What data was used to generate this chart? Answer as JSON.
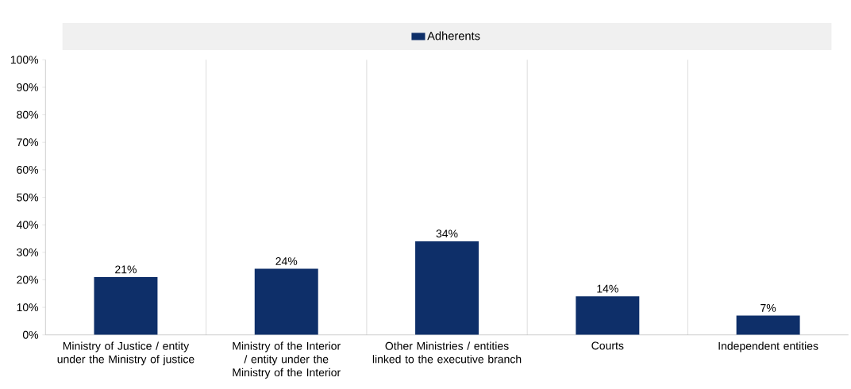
{
  "chart_data": {
    "type": "bar",
    "categories": [
      "Ministry of Justice / entity under the Ministry of justice",
      "Ministry of the Interior / entity under the Ministry of the Interior",
      "Other Ministries / entities linked to the executive branch",
      "Courts",
      "Independent entities"
    ],
    "series": [
      {
        "name": "Adherents",
        "color": "#0e2f69",
        "values": [
          21,
          24,
          34,
          14,
          7
        ]
      }
    ],
    "value_labels": [
      "21%",
      "24%",
      "34%",
      "14%",
      "7%"
    ],
    "ylim": [
      0,
      100
    ],
    "yticks": [
      {
        "value": 0,
        "label": "0%"
      },
      {
        "value": 10,
        "label": "10%"
      },
      {
        "value": 20,
        "label": "20%"
      },
      {
        "value": 30,
        "label": "30%"
      },
      {
        "value": 40,
        "label": "40%"
      },
      {
        "value": 50,
        "label": "50%"
      },
      {
        "value": 60,
        "label": "60%"
      },
      {
        "value": 70,
        "label": "70%"
      },
      {
        "value": 80,
        "label": "80%"
      },
      {
        "value": 90,
        "label": "90%"
      },
      {
        "value": 100,
        "label": "100%"
      }
    ],
    "grid": "x",
    "legend": "top"
  }
}
